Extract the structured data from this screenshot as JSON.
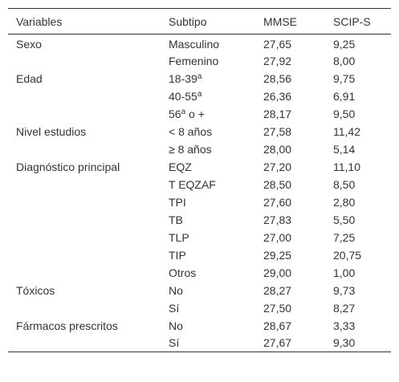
{
  "table": {
    "header": [
      "Variables",
      "Subtipo",
      "MMSE",
      "SCIP-S"
    ],
    "groups": [
      {
        "variable": "Sexo",
        "rows": [
          [
            "Masculino",
            "27,65",
            "9,25"
          ],
          [
            "Femenino",
            "27,92",
            "8,00"
          ]
        ]
      },
      {
        "variable": "Edad",
        "rows": [
          [
            {
              "parts": [
                "18-39",
                "a"
              ]
            },
            "28,56",
            "9,75"
          ],
          [
            {
              "parts": [
                "40-55",
                "a"
              ]
            },
            "26,36",
            "6,91"
          ],
          [
            {
              "parts": [
                "56",
                "a",
                " o +"
              ]
            },
            "28,17",
            "9,50"
          ]
        ]
      },
      {
        "variable": "Nivel estudios",
        "rows": [
          [
            "< 8 años",
            "27,58",
            "11,42"
          ],
          [
            "≥ 8 años",
            "28,00",
            "5,14"
          ]
        ]
      },
      {
        "variable": "Diagnóstico principal",
        "rows": [
          [
            "EQZ",
            "27,20",
            "11,10"
          ],
          [
            "T EQZAF",
            "28,50",
            "8,50"
          ],
          [
            "TPI",
            "27,60",
            "2,80"
          ],
          [
            "TB",
            "27,83",
            "5,50"
          ],
          [
            "TLP",
            "27,00",
            "7,25"
          ],
          [
            "TIP",
            "29,25",
            "20,75"
          ],
          [
            "Otros",
            "29,00",
            "1,00"
          ]
        ]
      },
      {
        "variable": "Tóxicos",
        "rows": [
          [
            "No",
            "28,27",
            "9,73"
          ],
          [
            "Sí",
            "27,50",
            "8,27"
          ]
        ]
      },
      {
        "variable": "Fármacos prescritos",
        "rows": [
          [
            "No",
            "28,67",
            "3,33"
          ],
          [
            "Sí",
            "27,67",
            "9,30"
          ]
        ]
      }
    ]
  }
}
